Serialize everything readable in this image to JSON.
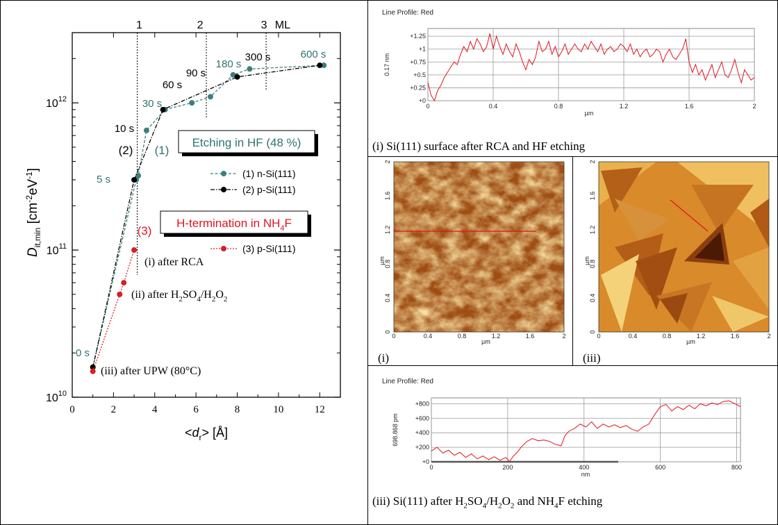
{
  "figure": {
    "colors": {
      "n_si": "#3b7f7e",
      "p_si": "#000000",
      "h_term": "#d61f26",
      "teal_text": "#2f7272",
      "red_text": "#e0141e",
      "profile_line": "#e0141e",
      "afm_light": "#f7e29a",
      "afm_mid": "#d98a2a",
      "afm_dark": "#4a1a05"
    }
  },
  "chart_data": [
    {
      "type": "scatter",
      "id": "dit-vs-roughness",
      "xlabel": "<d_r> [Å]",
      "ylabel": "D_it,min [cm^-2 eV^-1]",
      "xlim": [
        0,
        13
      ],
      "ylim": [
        10000000000.0,
        3000000000000.0
      ],
      "yscale": "log",
      "xticks": [
        "0",
        "2",
        "4",
        "6",
        "8",
        "10",
        "12"
      ],
      "yticks": [
        "10^10",
        "10^11",
        "10^12"
      ],
      "top_axis_labels": [
        "1",
        "2",
        "3",
        "ML"
      ],
      "monolayer_x": [
        3.15,
        6.5,
        9.4
      ],
      "series": [
        {
          "name": "(1) n-Si(111)",
          "style": "dashed",
          "x": [
            1.0,
            3.1,
            3.2,
            3.6,
            4.5,
            5.8,
            6.7,
            7.8,
            8.6,
            12.2
          ],
          "y": [
            16000000000.0,
            300000000000.0,
            320000000000.0,
            650000000000.0,
            900000000000.0,
            1000000000000.0,
            1100000000000.0,
            1550000000000.0,
            1700000000000.0,
            1800000000000.0
          ],
          "point_labels": [
            "0 s",
            "",
            "5 s",
            "",
            "30 s",
            "",
            "",
            "180 s",
            "",
            "600 s"
          ]
        },
        {
          "name": "(2) p-Si(111)",
          "style": "dash-dot",
          "x": [
            1.0,
            3.0,
            4.4,
            8.0,
            12.0
          ],
          "y": [
            16000000000.0,
            300000000000.0,
            900000000000.0,
            1500000000000.0,
            1800000000000.0
          ],
          "point_labels": [
            "",
            "",
            "",
            "",
            ""
          ]
        },
        {
          "name": "(3) p-Si(111)",
          "style": "dotted",
          "x": [
            1.0,
            2.3,
            2.5,
            3.0
          ],
          "y": [
            15000000000.0,
            50000000000.0,
            60000000000.0,
            100000000000.0
          ],
          "point_labels": [
            "",
            "",
            "",
            ""
          ]
        }
      ],
      "time_labels": [
        "10 s",
        "60 s",
        "90 s",
        "300 s"
      ],
      "curve_labels": [
        "(1)",
        "(2)",
        "(3)"
      ],
      "boxes": [
        "Etching in HF (48 %)",
        "H-termination in NH4F"
      ],
      "annotations": [
        "(i) after RCA",
        "(ii) after H2SO4/H2O2",
        "(iii) after UPW (80°C)"
      ]
    },
    {
      "type": "line",
      "id": "profile-i",
      "title": "Line Profile: Red",
      "xlabel": "µm",
      "ylabel": "0.17 nm",
      "xlim": [
        0,
        2
      ],
      "ylim": [
        0,
        1.4
      ],
      "xticks": [
        "0",
        "0.4",
        "0.8",
        "1.2",
        "1.6",
        "2"
      ],
      "yticks": [
        "+0",
        "+0.25",
        "+0.5",
        "+0.75",
        "+1",
        "+1.25"
      ],
      "x": [
        0,
        0.02,
        0.04,
        0.06,
        0.08,
        0.1,
        0.12,
        0.14,
        0.16,
        0.18,
        0.2,
        0.22,
        0.24,
        0.26,
        0.28,
        0.3,
        0.32,
        0.34,
        0.36,
        0.38,
        0.4,
        0.42,
        0.44,
        0.46,
        0.48,
        0.5,
        0.52,
        0.54,
        0.56,
        0.58,
        0.6,
        0.62,
        0.64,
        0.66,
        0.68,
        0.7,
        0.72,
        0.74,
        0.76,
        0.78,
        0.8,
        0.82,
        0.84,
        0.86,
        0.88,
        0.9,
        0.92,
        0.94,
        0.96,
        0.98,
        1.0,
        1.02,
        1.04,
        1.06,
        1.08,
        1.1,
        1.12,
        1.14,
        1.16,
        1.18,
        1.2,
        1.22,
        1.24,
        1.26,
        1.28,
        1.3,
        1.32,
        1.34,
        1.36,
        1.38,
        1.4,
        1.42,
        1.44,
        1.46,
        1.48,
        1.5,
        1.52,
        1.54,
        1.56,
        1.58,
        1.6,
        1.62,
        1.64,
        1.66,
        1.68,
        1.7,
        1.72,
        1.74,
        1.76,
        1.78,
        1.8,
        1.82,
        1.84,
        1.86,
        1.88,
        1.9,
        1.92,
        1.94,
        1.96,
        1.98,
        2.0
      ],
      "values": [
        0.35,
        0.1,
        0.0,
        0.2,
        0.3,
        0.45,
        0.55,
        0.65,
        0.75,
        0.7,
        0.9,
        1.05,
        0.95,
        1.15,
        1.0,
        1.2,
        1.1,
        0.95,
        1.05,
        1.3,
        1.0,
        1.25,
        1.05,
        0.9,
        1.1,
        0.95,
        0.85,
        1.1,
        0.95,
        0.75,
        0.6,
        0.8,
        0.7,
        0.85,
        1.15,
        0.95,
        1.0,
        1.15,
        0.9,
        1.05,
        0.85,
        0.95,
        1.1,
        0.9,
        1.0,
        1.1,
        1.0,
        0.95,
        1.1,
        1.0,
        1.15,
        1.05,
        0.95,
        1.1,
        0.9,
        1.0,
        1.05,
        0.95,
        1.0,
        1.1,
        1.05,
        0.95,
        1.1,
        0.9,
        1.0,
        0.85,
        0.95,
        1.0,
        0.85,
        0.9,
        1.0,
        0.95,
        0.75,
        0.9,
        1.0,
        0.85,
        0.8,
        0.9,
        1.0,
        1.2,
        0.75,
        0.55,
        0.7,
        0.5,
        0.6,
        0.4,
        0.55,
        0.7,
        0.45,
        0.6,
        0.75,
        0.5,
        0.45,
        0.6,
        0.8,
        0.55,
        0.35,
        0.6,
        0.5,
        0.4,
        0.45
      ]
    },
    {
      "type": "line",
      "id": "profile-iii",
      "title": "Line Profile: Red",
      "xlabel": "nm",
      "ylabel": "698.868 pm",
      "xlim": [
        0,
        810
      ],
      "ylim": [
        0,
        880
      ],
      "xticks": [
        "0",
        "200",
        "400",
        "600",
        "800"
      ],
      "yticks": [
        "+0",
        "+200",
        "+400",
        "+600",
        "+800"
      ],
      "x": [
        0,
        15,
        30,
        45,
        60,
        75,
        90,
        105,
        120,
        135,
        150,
        165,
        180,
        195,
        205,
        215,
        225,
        235,
        250,
        265,
        280,
        295,
        310,
        325,
        340,
        350,
        360,
        375,
        390,
        405,
        420,
        435,
        450,
        465,
        480,
        495,
        510,
        525,
        540,
        555,
        570,
        585,
        600,
        615,
        630,
        645,
        660,
        675,
        690,
        705,
        720,
        735,
        750,
        765,
        780,
        795,
        810
      ],
      "values": [
        150,
        200,
        120,
        160,
        90,
        130,
        60,
        110,
        40,
        80,
        30,
        70,
        20,
        60,
        5,
        80,
        130,
        200,
        280,
        320,
        290,
        300,
        280,
        240,
        220,
        360,
        420,
        460,
        520,
        480,
        550,
        460,
        520,
        480,
        510,
        470,
        500,
        450,
        420,
        480,
        520,
        650,
        760,
        790,
        700,
        760,
        720,
        780,
        730,
        800,
        770,
        810,
        790,
        830,
        840,
        800,
        760
      ]
    }
  ],
  "images": {
    "afm_i": {
      "xticks": [
        "0",
        "0.4",
        "0.8",
        "1.2",
        "1.6",
        "2"
      ],
      "yticks": [
        "0",
        "0.4",
        "0.8",
        "1.2",
        "1.6",
        "2"
      ],
      "xlabel": "µm",
      "ylabel": "µm"
    },
    "afm_iii": {
      "xticks": [
        "0",
        "0.4",
        "0.8",
        "1.2",
        "1.6",
        "2"
      ],
      "yticks": [
        "0",
        "0.4",
        "0.8",
        "1.2",
        "1.6",
        "2"
      ],
      "xlabel": "µm",
      "ylabel": "µm"
    }
  },
  "captions": {
    "profile_i": "(i) Si(111) surface after RCA and HF etching",
    "afm_i": "(i)",
    "afm_iii": "(iii)",
    "profile_iii": "(iii) Si(111) after H2SO4/H2O2 and NH4F etching"
  }
}
